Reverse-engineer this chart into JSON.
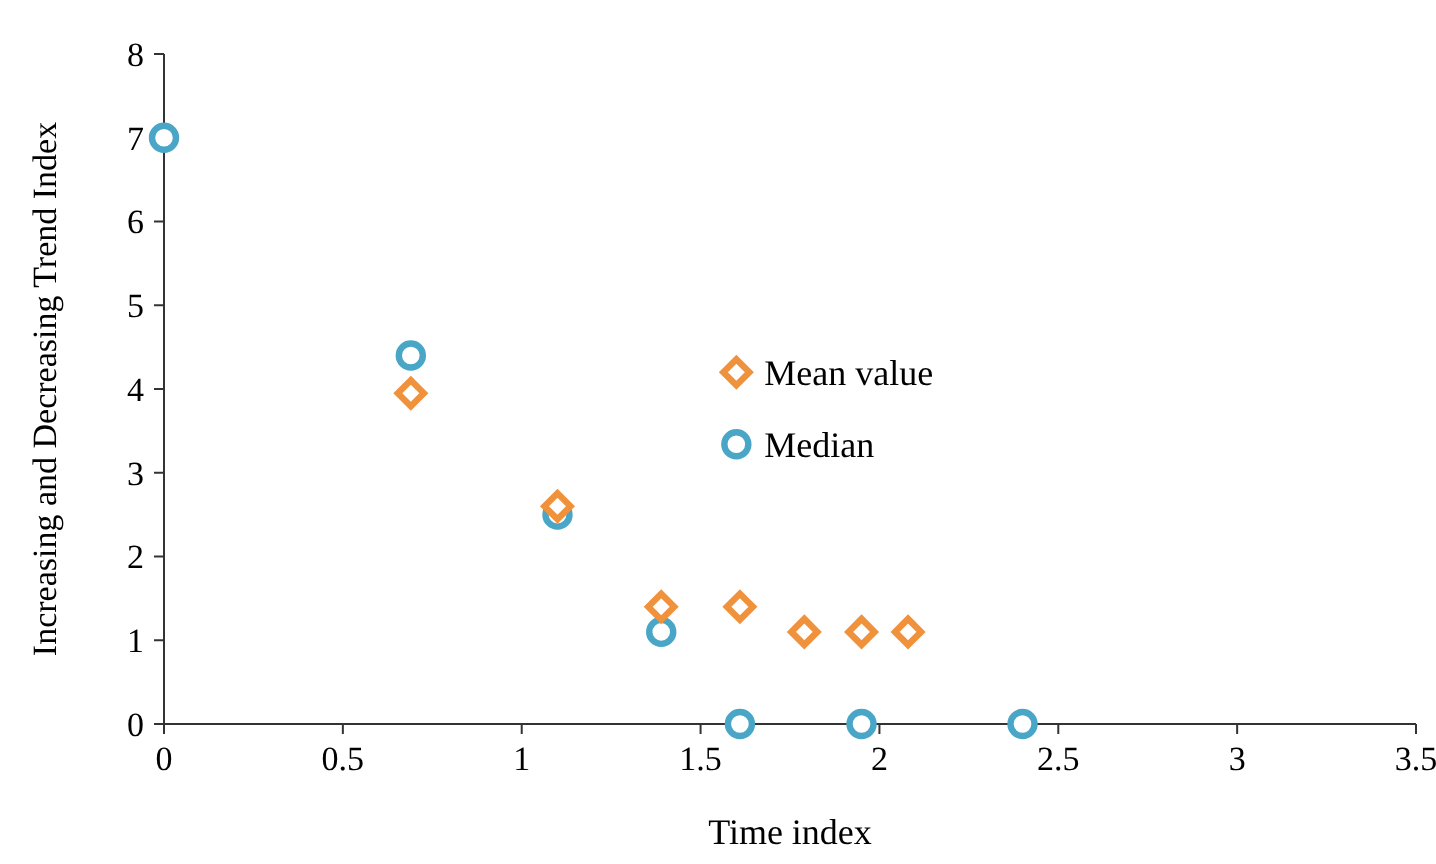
{
  "chart_data": {
    "type": "scatter",
    "xlabel": "Time index",
    "ylabel": "Increasing and Decreasing Trend Index",
    "xlim": [
      0,
      3.5
    ],
    "xticks": [
      0,
      0.5,
      1,
      1.5,
      2,
      2.5,
      3,
      3.5
    ],
    "ylim": [
      0,
      8
    ],
    "yticks": [
      0,
      1,
      2,
      3,
      4,
      5,
      6,
      7,
      8
    ],
    "grid": false,
    "legend": "center",
    "series": [
      {
        "name": "Mean value",
        "color": "#f0913c",
        "marker": "diamond",
        "x": [
          0.69,
          1.1,
          1.39,
          1.61,
          1.79,
          1.95,
          2.08
        ],
        "values": [
          3.95,
          2.6,
          1.4,
          1.4,
          1.1,
          1.1,
          1.1
        ]
      },
      {
        "name": "Median",
        "color": "#4aa6c6",
        "marker": "circle",
        "x": [
          0,
          0.69,
          1.1,
          1.39,
          1.61,
          1.95,
          2.4
        ],
        "values": [
          7,
          4.4,
          2.5,
          1.1,
          0,
          0,
          0
        ]
      }
    ]
  }
}
